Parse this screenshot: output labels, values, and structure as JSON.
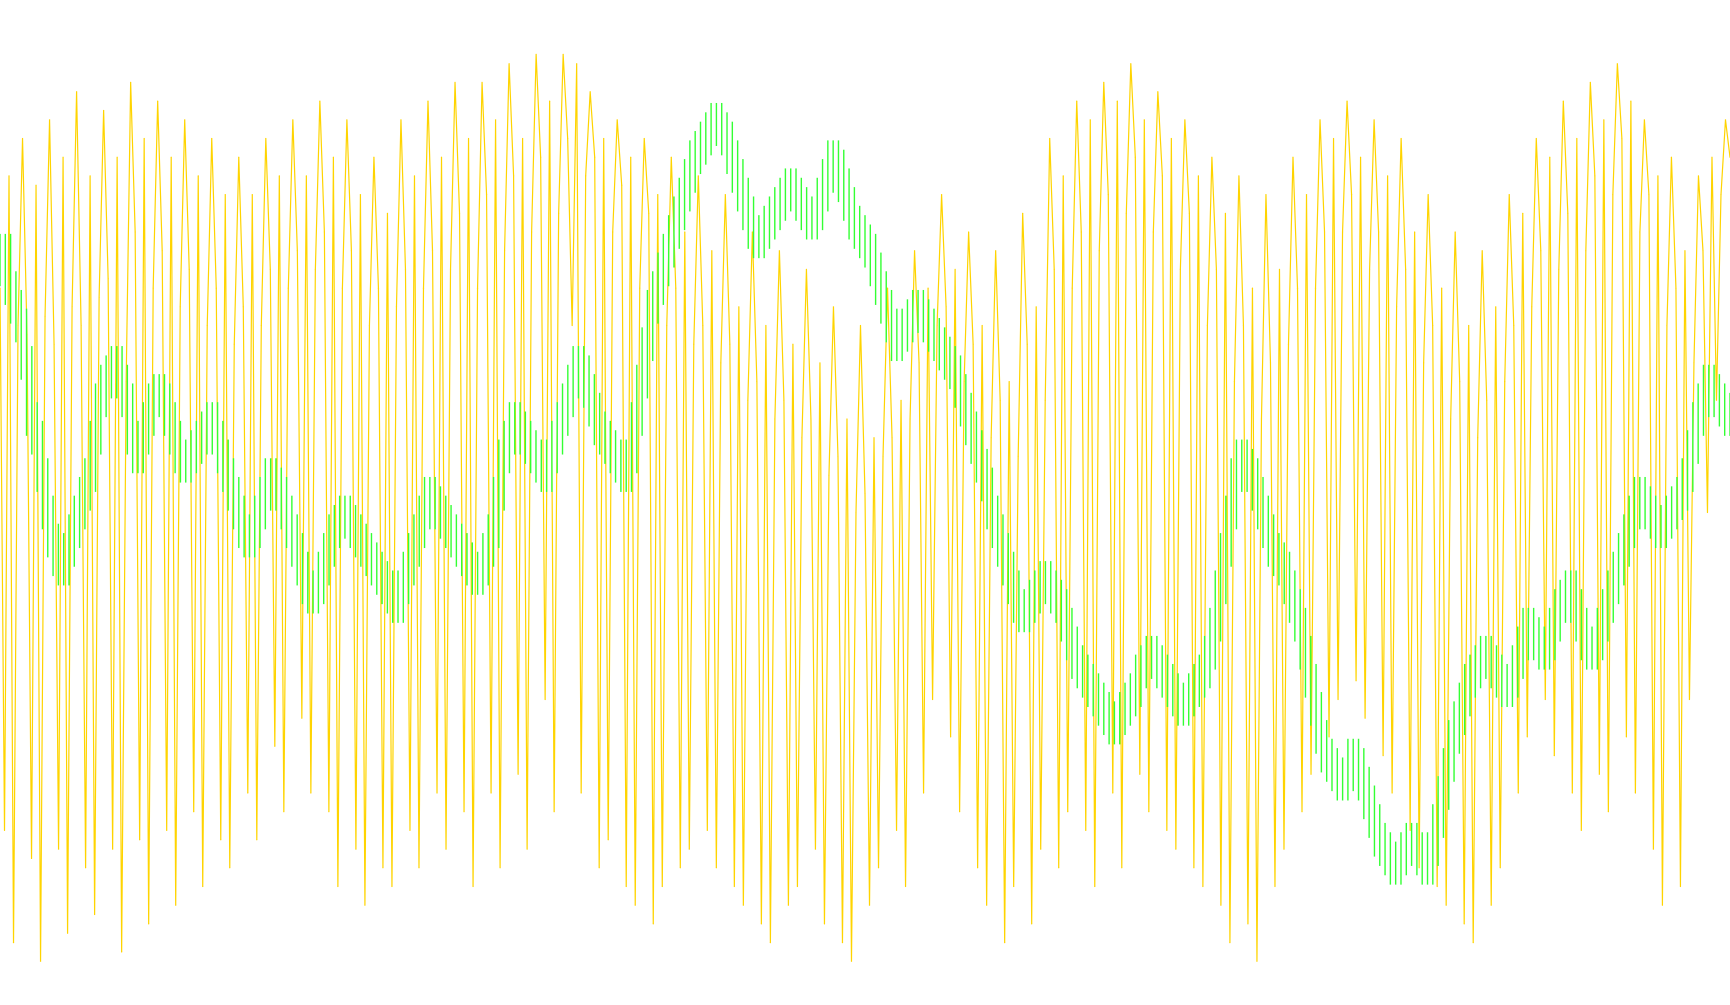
{
  "chart_data": {
    "type": "line",
    "title": "",
    "xlabel": "",
    "ylabel": "",
    "grid": false,
    "legend": "none",
    "ylim": [
      0,
      100
    ],
    "series": [
      {
        "color": "#FFD400",
        "style": "line",
        "values": [
          74,
          16,
          86,
          4,
          70,
          90,
          69,
          13,
          85,
          2,
          71,
          92,
          68,
          14,
          88,
          5,
          72,
          95,
          70,
          12,
          86,
          7,
          73,
          93,
          75,
          14,
          88,
          3,
          64,
          96,
          80,
          15,
          90,
          6,
          74,
          94,
          78,
          16,
          88,
          8,
          72,
          92,
          76,
          18,
          86,
          10,
          70,
          90,
          74,
          15,
          84,
          12,
          68,
          88,
          72,
          20,
          84,
          15,
          70,
          90,
          76,
          25,
          86,
          18,
          74,
          92,
          78,
          28,
          86,
          20,
          76,
          94,
          80,
          18,
          88,
          10,
          74,
          92,
          78,
          14,
          84,
          8,
          70,
          88,
          74,
          12,
          82,
          10,
          72,
          92,
          76,
          16,
          86,
          12,
          74,
          94,
          78,
          20,
          88,
          14,
          76,
          96,
          82,
          18,
          90,
          10,
          74,
          96,
          84,
          20,
          92,
          12,
          78,
          98,
          86,
          22,
          90,
          14,
          80,
          99,
          88,
          30,
          94,
          18,
          82,
          99,
          90,
          70,
          98,
          20,
          86,
          95,
          88,
          12,
          90,
          15,
          80,
          92,
          85,
          10,
          88,
          8,
          74,
          90,
          82,
          6,
          84,
          10,
          70,
          88,
          74,
          12,
          80,
          14,
          68,
          86,
          70,
          16,
          78,
          12,
          66,
          84,
          68,
          10,
          72,
          8,
          62,
          80,
          64,
          6,
          70,
          4,
          60,
          78,
          62,
          8,
          68,
          10,
          58,
          76,
          60,
          14,
          66,
          6,
          54,
          72,
          56,
          4,
          60,
          2,
          50,
          70,
          52,
          8,
          58,
          12,
          56,
          74,
          58,
          16,
          62,
          10,
          60,
          78,
          66,
          20,
          74,
          30,
          70,
          84,
          72,
          26,
          76,
          18,
          64,
          80,
          68,
          12,
          70,
          8,
          58,
          78,
          62,
          4,
          64,
          10,
          56,
          82,
          68,
          6,
          72,
          14,
          62,
          90,
          76,
          12,
          86,
          18,
          74,
          94,
          80,
          16,
          92,
          10,
          78,
          96,
          84,
          20,
          94,
          12,
          82,
          98,
          88,
          22,
          92,
          18,
          80,
          95,
          86,
          16,
          90,
          14,
          76,
          92,
          82,
          12,
          86,
          10,
          70,
          88,
          76,
          8,
          82,
          4,
          64,
          86,
          70,
          6,
          74,
          2,
          60,
          84,
          66,
          10,
          76,
          14,
          68,
          88,
          74,
          18,
          84,
          22,
          74,
          92,
          80,
          26,
          90,
          30,
          80,
          94,
          84,
          32,
          88,
          28,
          76,
          92,
          80,
          24,
          86,
          20,
          72,
          90,
          76,
          16,
          80,
          12,
          66,
          84,
          70,
          10,
          74,
          8,
          60,
          80,
          64,
          6,
          70,
          4,
          58,
          78,
          62,
          8,
          72,
          12,
          64,
          84,
          70,
          20,
          82,
          26,
          72,
          90,
          78,
          30,
          88,
          24,
          76,
          94,
          82,
          20,
          90,
          16,
          78,
          96,
          86,
          22,
          92,
          18,
          84,
          98,
          90,
          26,
          94,
          20,
          80,
          92,
          84,
          14,
          86,
          8,
          70,
          88,
          74,
          10,
          78,
          30,
          66,
          86,
          78,
          50,
          88,
          62,
          84,
          92,
          88
        ]
      },
      {
        "color": "#33FF33",
        "style": "bars",
        "values": [
          76,
          78,
          74,
          72,
          70,
          66,
          60,
          58,
          54,
          50,
          47,
          45,
          44,
          46,
          48,
          50,
          52,
          54,
          58,
          62,
          64,
          65,
          66,
          64,
          62,
          58,
          56,
          58,
          60,
          62,
          63,
          62,
          60,
          58,
          56,
          55,
          56,
          57,
          58,
          59,
          60,
          58,
          56,
          54,
          52,
          50,
          48,
          47,
          48,
          50,
          52,
          54,
          53,
          52,
          50,
          48,
          46,
          44,
          42,
          41,
          42,
          44,
          46,
          48,
          49,
          50,
          49,
          48,
          47,
          46,
          45,
          44,
          43,
          42,
          41,
          40,
          42,
          44,
          46,
          48,
          50,
          52,
          51,
          50,
          49,
          48,
          47,
          46,
          45,
          44,
          43,
          44,
          46,
          48,
          52,
          56,
          58,
          60,
          59,
          58,
          57,
          56,
          55,
          54,
          56,
          58,
          60,
          62,
          64,
          66,
          65,
          63,
          61,
          59,
          58,
          57,
          56,
          55,
          54,
          56,
          60,
          64,
          68,
          72,
          74,
          76,
          78,
          80,
          82,
          84,
          86,
          88,
          89,
          90,
          91,
          92,
          91,
          90,
          88,
          86,
          84,
          82,
          80,
          79,
          80,
          81,
          82,
          83,
          84,
          85,
          84,
          83,
          82,
          81,
          82,
          84,
          86,
          88,
          87,
          85,
          83,
          81,
          80,
          79,
          78,
          76,
          74,
          72,
          70,
          68,
          69,
          70,
          71,
          72,
          71,
          70,
          69,
          68,
          67,
          66,
          65,
          63,
          61,
          59,
          57,
          55,
          53,
          50,
          48,
          46,
          44,
          42,
          40,
          39,
          40,
          41,
          42,
          43,
          42,
          41,
          40,
          38,
          36,
          34,
          33,
          32,
          31,
          30,
          29,
          28,
          27,
          28,
          29,
          30,
          31,
          33,
          34,
          35,
          34,
          33,
          32,
          31,
          30,
          29,
          30,
          31,
          32,
          33,
          35,
          38,
          42,
          46,
          50,
          54,
          56,
          55,
          54,
          52,
          50,
          48,
          46,
          45,
          44,
          42,
          40,
          38,
          35,
          32,
          29,
          26,
          24,
          23,
          22,
          21,
          22,
          24,
          23,
          21,
          19,
          17,
          15,
          14,
          13,
          12,
          13,
          14,
          15,
          14,
          13,
          12,
          14,
          17,
          20,
          23,
          26,
          28,
          30,
          32,
          33,
          34,
          35,
          34,
          33,
          32,
          31,
          32,
          34,
          36,
          38,
          37,
          36,
          35,
          36,
          38,
          40,
          41,
          42,
          40,
          38,
          36,
          35,
          36,
          38,
          40,
          42,
          44,
          46,
          48,
          50,
          52,
          51,
          50,
          49,
          48,
          49,
          50,
          51,
          52,
          54,
          57,
          60,
          62,
          64,
          63,
          62,
          61,
          60
        ]
      }
    ]
  }
}
